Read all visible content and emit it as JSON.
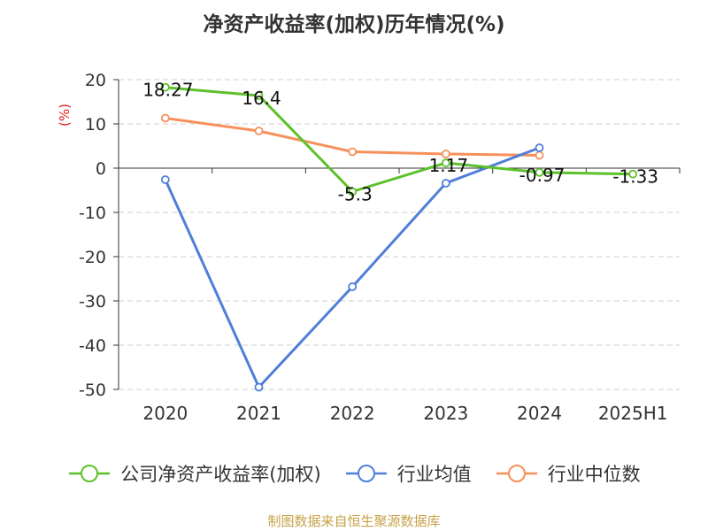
{
  "chart_data": {
    "type": "line",
    "title": "净资产收益率(加权)历年情况(%)",
    "ylabel": "(%)",
    "xlabel": "",
    "categories": [
      "2020",
      "2021",
      "2022",
      "2023",
      "2024",
      "2025H1"
    ],
    "ylim": [
      -50,
      20
    ],
    "yticks": [
      20,
      10,
      0,
      -10,
      -20,
      -30,
      -40,
      -50
    ],
    "grid": true,
    "legend_position": "bottom",
    "series": [
      {
        "name": "公司净资产收益率(加权)",
        "color": "#5cc12a",
        "values": [
          18.27,
          16.4,
          -5.3,
          1.17,
          -0.97,
          -1.33
        ],
        "labels": [
          "18.27",
          "16.4",
          "-5.3",
          "1.17",
          "-0.97",
          "-1.33"
        ]
      },
      {
        "name": "行业均值",
        "color": "#4f7fd8",
        "values": [
          -2.6,
          -49.5,
          -26.8,
          -3.4,
          4.6,
          null
        ]
      },
      {
        "name": "行业中位数",
        "color": "#f7905a",
        "values": [
          11.3,
          8.4,
          3.7,
          3.2,
          2.9,
          null
        ]
      }
    ]
  },
  "source_text": "制图数据来自恒生聚源数据库"
}
